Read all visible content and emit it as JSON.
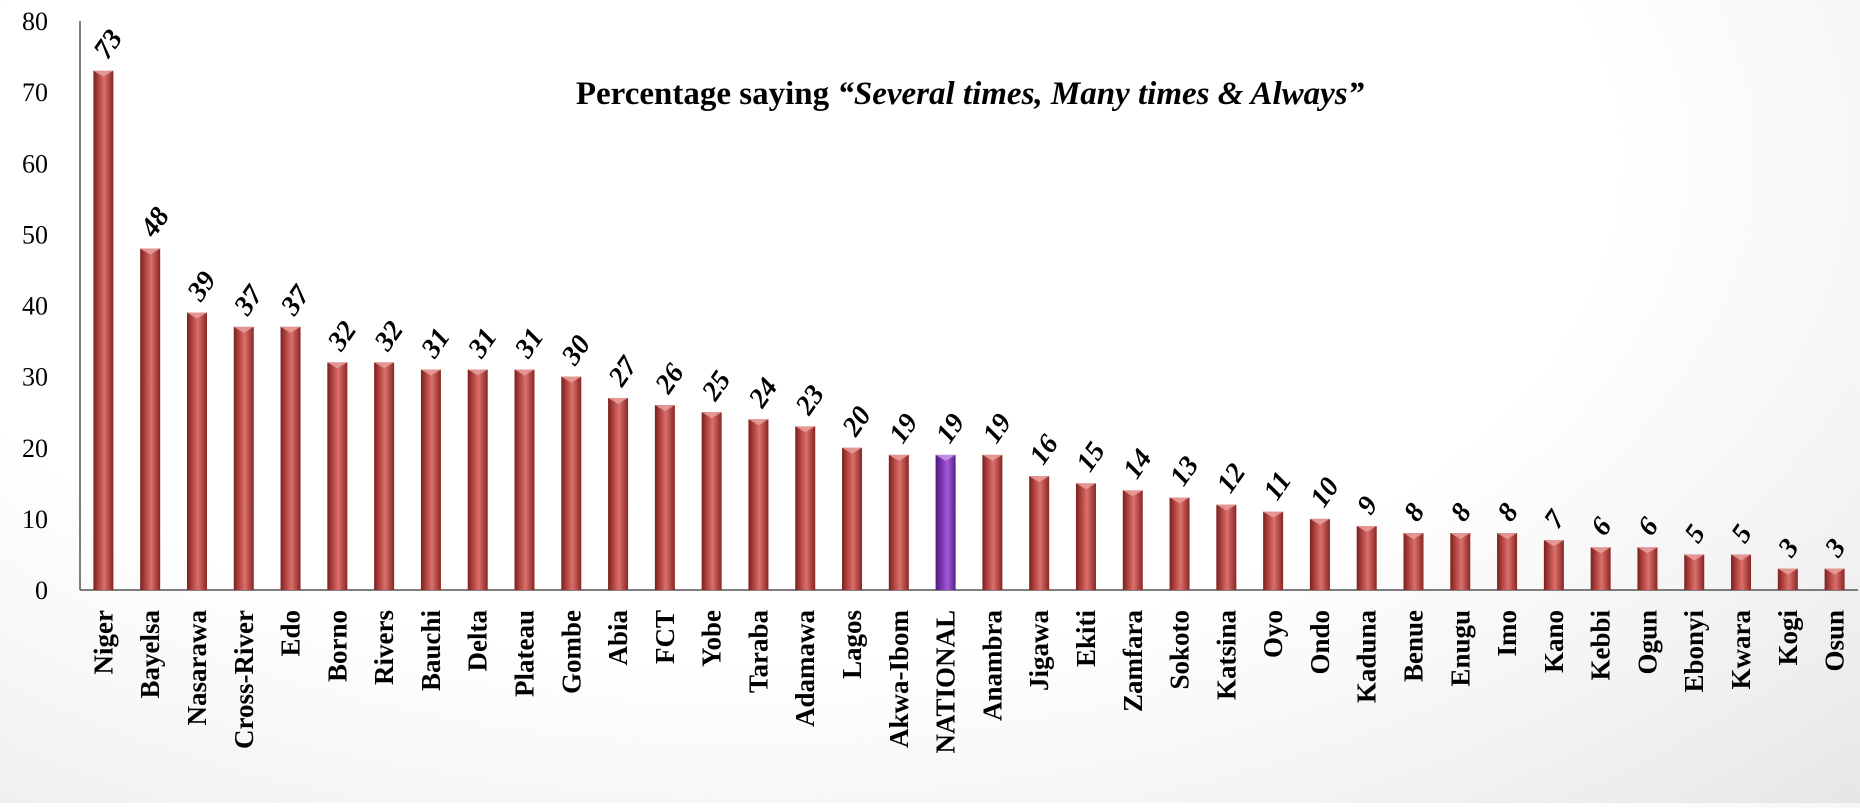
{
  "chart_data": {
    "type": "bar",
    "title_prefix": "Percentage saying ",
    "title_emphasis": "“Several times, Many times & Always”",
    "xlabel": "",
    "ylabel": "",
    "ylim": [
      0,
      80
    ],
    "yticks": [
      0,
      10,
      20,
      30,
      40,
      50,
      60,
      70,
      80
    ],
    "grid": false,
    "legend": "none",
    "highlight_category": "NATIONAL",
    "bar_color": "#a8302e",
    "highlight_color": "#7b2fb0",
    "categories": [
      "Niger",
      "Bayelsa",
      "Nasarawa",
      "Cross-River",
      "Edo",
      "Borno",
      "Rivers",
      "Bauchi",
      "Delta",
      "Plateau",
      "Gombe",
      "Abia",
      "FCT",
      "Yobe",
      "Taraba",
      "Adamawa",
      "Lagos",
      "Akwa-Ibom",
      "NATIONAL",
      "Anambra",
      "Jigawa",
      "Ekiti",
      "Zamfara",
      "Sokoto",
      "Katsina",
      "Oyo",
      "Ondo",
      "Kaduna",
      "Benue",
      "Enugu",
      "Imo",
      "Kano",
      "Kebbi",
      "Ogun",
      "Ebonyi",
      "Kwara",
      "Kogi",
      "Osun"
    ],
    "values": [
      73,
      48,
      39,
      37,
      37,
      32,
      32,
      31,
      31,
      31,
      30,
      27,
      26,
      25,
      24,
      23,
      20,
      19,
      19,
      19,
      16,
      15,
      14,
      13,
      12,
      11,
      10,
      9,
      8,
      8,
      8,
      7,
      6,
      6,
      5,
      5,
      3,
      3
    ]
  }
}
